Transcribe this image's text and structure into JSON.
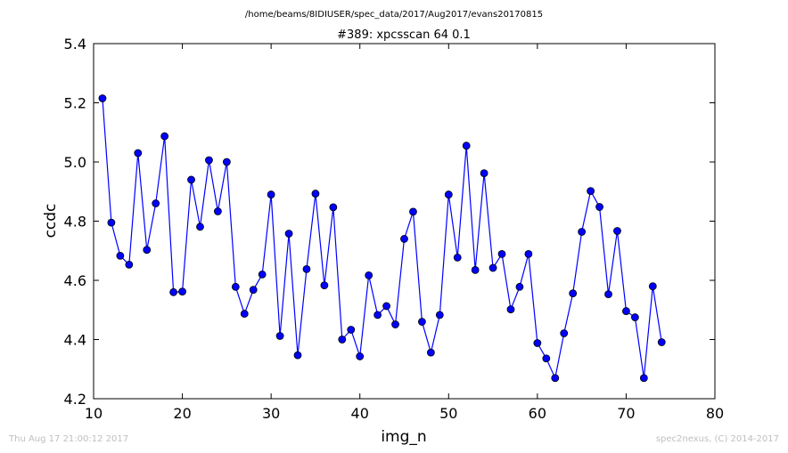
{
  "header": {
    "path": "/home/beams/8IDIUSER/spec_data/2017/Aug2017/evans20170815"
  },
  "footer": {
    "timestamp": "Thu Aug 17 21:00:12 2017",
    "credit": "spec2nexus, (C) 2014-2017"
  },
  "colors": {
    "series": "#0000ff",
    "axes": "#000000",
    "footer_text": "#bfbfbf"
  },
  "chart_data": {
    "type": "line",
    "title": "#389: xpcsscan 64 0.1",
    "xlabel": "img_n",
    "ylabel": "ccdc",
    "xlim": [
      10,
      80
    ],
    "ylim": [
      4.2,
      5.4
    ],
    "xticks": [
      "10",
      "20",
      "30",
      "40",
      "50",
      "60",
      "70",
      "80"
    ],
    "yticks": [
      "4.2",
      "4.4",
      "4.6",
      "4.8",
      "5.0",
      "5.2",
      "5.4"
    ],
    "grid": false,
    "markers": "circle",
    "series": [
      {
        "x": [
          11,
          12,
          13,
          14,
          15,
          16,
          17,
          18,
          19,
          20,
          21,
          22,
          23,
          24,
          25,
          26,
          27,
          28,
          29,
          30,
          31,
          32,
          33,
          34,
          35,
          36,
          37,
          38,
          39,
          40,
          41,
          42,
          43,
          44,
          45,
          46,
          47,
          48,
          49,
          50,
          51,
          52,
          53,
          54,
          55,
          56,
          57,
          58,
          59,
          60,
          61,
          62,
          63,
          64,
          65,
          66,
          67,
          68,
          69,
          70,
          71,
          72,
          73,
          74
        ],
        "values": [
          5.215,
          4.795,
          4.683,
          4.653,
          5.03,
          4.703,
          4.86,
          5.087,
          4.56,
          4.562,
          4.94,
          4.781,
          5.006,
          4.833,
          5.0,
          4.578,
          4.487,
          4.568,
          4.62,
          4.89,
          4.412,
          4.758,
          4.347,
          4.638,
          4.893,
          4.583,
          4.847,
          4.4,
          4.433,
          4.343,
          4.617,
          4.483,
          4.513,
          4.451,
          4.74,
          4.832,
          4.46,
          4.356,
          4.483,
          4.89,
          4.677,
          5.055,
          4.635,
          4.962,
          4.642,
          4.689,
          4.502,
          4.578,
          4.689,
          4.388,
          4.336,
          4.27,
          4.421,
          4.556,
          4.764,
          4.902,
          4.848,
          4.553,
          4.767,
          4.496,
          4.475,
          4.27,
          4.58,
          4.391
        ]
      }
    ]
  }
}
